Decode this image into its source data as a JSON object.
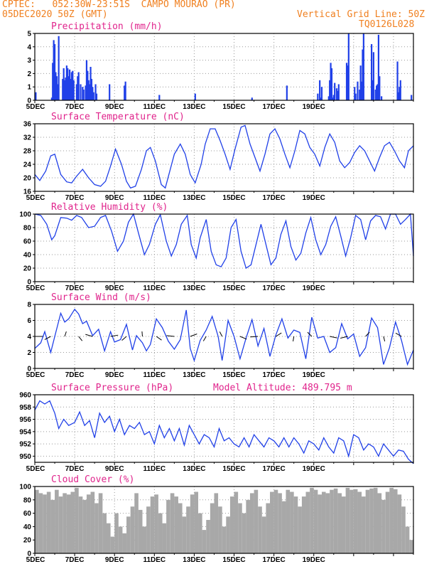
{
  "header": {
    "line1": "CPTEC:   052:30W-23:51S  CAMPO MOURAO (PR)",
    "line2": "05DEC2020 50Z (GMT)",
    "grid_note": "Vertical Grid Line: 50Z",
    "code": "TQ0126L028"
  },
  "colors": {
    "series": "#2040e8",
    "bars": "#2040e8",
    "cloud": "#a8a8a8",
    "title": "#e0248c",
    "header": "#f08020"
  },
  "x_labels": [
    "5DEC",
    "7DEC",
    "9DEC",
    "11DEC",
    "13DEC",
    "15DEC",
    "17DEC",
    "19DEC"
  ],
  "chart_data": [
    {
      "id": "precip",
      "type": "bar",
      "title": "Precipitation (mm/h)",
      "ylim": [
        0,
        5
      ],
      "yticks": [
        "0",
        "1",
        "2",
        "3",
        "4",
        "5"
      ],
      "x_unit": "days since 5DEC 00Z",
      "x": [
        0.05,
        0.85,
        0.9,
        0.95,
        1.0,
        1.05,
        1.1,
        1.15,
        1.2,
        1.4,
        1.45,
        1.5,
        1.55,
        1.6,
        1.65,
        1.7,
        1.75,
        1.8,
        1.85,
        1.9,
        1.95,
        2.1,
        2.15,
        2.2,
        2.3,
        2.4,
        2.45,
        2.55,
        2.6,
        2.65,
        2.7,
        2.75,
        2.8,
        2.85,
        2.9,
        2.95,
        3.05,
        3.1,
        3.75,
        4.5,
        4.55,
        6.25,
        8.05,
        10.9,
        12.65,
        14.2,
        14.3,
        14.35,
        14.4,
        14.75,
        14.8,
        14.85,
        14.9,
        14.95,
        15.0,
        15.05,
        15.15,
        15.2,
        15.25,
        15.65,
        15.7,
        15.75,
        16.05,
        16.1,
        16.2,
        16.3,
        16.35,
        16.4,
        16.45,
        16.5,
        16.9,
        16.95,
        17.0,
        17.1,
        17.15,
        17.2,
        17.25,
        17.3,
        17.4,
        18.2,
        18.25,
        18.3,
        18.35,
        18.9
      ],
      "values": [
        0.6,
        0.2,
        2.8,
        4.5,
        4.2,
        2.1,
        1.8,
        1.2,
        4.8,
        1.6,
        2.4,
        1.5,
        1.7,
        2.6,
        2.4,
        1.8,
        2.3,
        1.6,
        2.1,
        2.2,
        1.5,
        1.2,
        1.8,
        2.1,
        1.2,
        1.0,
        0.8,
        1.1,
        3.0,
        2.2,
        1.5,
        1.2,
        2.5,
        1.6,
        1.0,
        0.6,
        1.2,
        0.5,
        1.2,
        1.1,
        1.4,
        0.4,
        0.5,
        0.2,
        1.1,
        0.5,
        1.5,
        0.2,
        1.0,
        0.3,
        1.5,
        2.8,
        2.4,
        0.2,
        0.4,
        1.3,
        0.9,
        0.7,
        1.2,
        2.8,
        2.6,
        5.0,
        1.0,
        0.5,
        1.4,
        0.8,
        2.6,
        1.4,
        3.8,
        5.0,
        4.2,
        1.5,
        3.6,
        0.8,
        1.1,
        1.2,
        4.9,
        1.8,
        0.3,
        2.9,
        0.6,
        1.0,
        1.5,
        0.4
      ]
    },
    {
      "id": "temp",
      "type": "line",
      "title": "Surface Temperature (nC)",
      "ylim": [
        16,
        36
      ],
      "yticks": [
        "16",
        "20",
        "24",
        "28",
        "32",
        "36"
      ],
      "x_unit": "days since 5DEC 00Z",
      "x": [
        0,
        0.25,
        0.55,
        0.8,
        1.0,
        1.3,
        1.6,
        1.85,
        2.1,
        2.4,
        2.7,
        3.0,
        3.3,
        3.55,
        3.8,
        4.05,
        4.35,
        4.6,
        4.8,
        5.05,
        5.35,
        5.6,
        5.8,
        6.05,
        6.35,
        6.55,
        6.75,
        7.0,
        7.3,
        7.55,
        7.8,
        8.05,
        8.35,
        8.55,
        8.8,
        9.05,
        9.3,
        9.55,
        9.8,
        10.05,
        10.35,
        10.55,
        10.8,
        11.05,
        11.3,
        11.55,
        11.8,
        12.05,
        12.3,
        12.55,
        12.8,
        13.05,
        13.3,
        13.55,
        13.8,
        14.05,
        14.3,
        14.55,
        14.8,
        15.05,
        15.3,
        15.55,
        15.8,
        16.05,
        16.3,
        16.55,
        16.8,
        17.05,
        17.3,
        17.55,
        17.8,
        18.05,
        18.3,
        18.55,
        18.75,
        19.0
      ],
      "values": [
        21,
        19.2,
        22,
        26.5,
        27,
        21,
        18.8,
        18.5,
        20.5,
        22.5,
        20,
        18,
        17.5,
        19,
        23.5,
        28.5,
        24,
        19,
        17,
        17.5,
        22.5,
        28,
        29,
        25,
        18,
        17,
        21.5,
        27,
        30,
        27,
        21,
        18.5,
        24,
        30,
        34.5,
        34.5,
        31,
        27,
        22.5,
        28.5,
        35,
        35.5,
        30,
        26,
        22,
        27,
        33,
        34.5,
        31.5,
        27,
        23,
        28,
        34,
        33,
        29,
        27,
        23.5,
        29,
        33,
        30.5,
        25,
        23,
        24.5,
        27.5,
        29.5,
        28,
        25,
        22,
        26,
        29.5,
        30.5,
        28,
        25,
        23,
        28,
        29.5
      ]
    },
    {
      "id": "rh",
      "type": "line",
      "title": "Relative Humidity (%)",
      "ylim": [
        0,
        100
      ],
      "yticks": [
        "0",
        "20",
        "40",
        "60",
        "80",
        "100"
      ],
      "x_unit": "days since 5DEC 00Z",
      "x": [
        0,
        0.3,
        0.6,
        0.85,
        1.0,
        1.3,
        1.6,
        1.85,
        2.1,
        2.35,
        2.7,
        3.0,
        3.3,
        3.55,
        3.85,
        4.15,
        4.45,
        4.7,
        4.95,
        5.2,
        5.5,
        5.75,
        6.05,
        6.3,
        6.6,
        6.85,
        7.1,
        7.35,
        7.65,
        7.85,
        8.1,
        8.3,
        8.6,
        8.85,
        9.1,
        9.35,
        9.6,
        9.85,
        10.1,
        10.35,
        10.6,
        10.85,
        11.1,
        11.35,
        11.6,
        11.85,
        12.1,
        12.35,
        12.6,
        12.85,
        13.1,
        13.35,
        13.6,
        13.85,
        14.1,
        14.35,
        14.6,
        14.85,
        15.1,
        15.35,
        15.6,
        15.85,
        16.1,
        16.35,
        16.6,
        16.85,
        17.1,
        17.35,
        17.6,
        17.85,
        18.1,
        18.35,
        18.6,
        18.85,
        19.0
      ],
      "values": [
        100,
        98,
        85,
        62,
        68,
        95,
        94,
        91,
        98,
        95,
        80,
        82,
        95,
        98,
        75,
        45,
        60,
        88,
        100,
        72,
        40,
        55,
        85,
        99,
        60,
        38,
        55,
        85,
        98,
        55,
        35,
        65,
        92,
        45,
        25,
        22,
        35,
        80,
        92,
        45,
        20,
        25,
        55,
        85,
        55,
        25,
        35,
        70,
        90,
        52,
        32,
        42,
        72,
        95,
        62,
        40,
        55,
        82,
        96,
        68,
        38,
        65,
        98,
        92,
        62,
        90,
        98,
        96,
        78,
        100,
        100,
        85,
        92,
        100,
        38
      ]
    },
    {
      "id": "wind",
      "type": "line",
      "title": "Surface Wind (m/s)",
      "ylim": [
        0,
        8
      ],
      "yticks": [
        "0",
        "2",
        "4",
        "6",
        "8"
      ],
      "x_unit": "days since 5DEC 00Z",
      "x": [
        0,
        0.3,
        0.5,
        0.8,
        1.0,
        1.3,
        1.5,
        1.7,
        2.0,
        2.2,
        2.4,
        2.6,
        2.9,
        3.2,
        3.5,
        3.8,
        4.0,
        4.3,
        4.6,
        4.9,
        5.1,
        5.4,
        5.6,
        5.8,
        6.1,
        6.4,
        6.7,
        7.0,
        7.3,
        7.6,
        7.8,
        8.0,
        8.3,
        8.6,
        8.9,
        9.2,
        9.4,
        9.7,
        10.0,
        10.3,
        10.6,
        10.9,
        11.2,
        11.5,
        11.8,
        12.1,
        12.4,
        12.7,
        13.0,
        13.3,
        13.6,
        13.9,
        14.2,
        14.5,
        14.8,
        15.1,
        15.4,
        15.7,
        16.0,
        16.3,
        16.6,
        16.9,
        17.2,
        17.5,
        17.8,
        18.1,
        18.4,
        18.7,
        19.0
      ],
      "values": [
        2.5,
        3.2,
        4.6,
        2.0,
        4.0,
        6.9,
        5.8,
        6.2,
        7.4,
        6.8,
        5.6,
        5.9,
        4.1,
        4.9,
        2.2,
        4.6,
        3.3,
        3.6,
        5.5,
        2.3,
        4.1,
        3.2,
        2.2,
        3.0,
        6.2,
        5.1,
        3.4,
        2.4,
        3.6,
        7.3,
        2.5,
        1.0,
        3.5,
        4.8,
        6.5,
        4.0,
        1.0,
        6.0,
        4.0,
        1.2,
        3.8,
        6.1,
        2.8,
        5.0,
        1.5,
        4.2,
        6.2,
        3.8,
        4.8,
        4.5,
        1.2,
        6.4,
        3.8,
        4.0,
        2.0,
        2.6,
        5.6,
        3.7,
        4.3,
        1.5,
        2.6,
        6.3,
        5.1,
        0.5,
        2.6,
        5.8,
        3.5,
        0.5,
        2.3
      ]
    },
    {
      "id": "pres",
      "type": "line",
      "title": "Surface Pressure (hPa)",
      "note": "Model Altitude: 489.795 m",
      "ylim": [
        949,
        960
      ],
      "yticks": [
        "950",
        "952",
        "954",
        "956",
        "958",
        "960"
      ],
      "x_unit": "days since 5DEC 00Z",
      "x": [
        0,
        0.25,
        0.5,
        0.75,
        1.0,
        1.2,
        1.45,
        1.7,
        2.0,
        2.25,
        2.5,
        2.75,
        3.0,
        3.25,
        3.5,
        3.75,
        4.0,
        4.25,
        4.5,
        4.75,
        5.0,
        5.25,
        5.5,
        5.75,
        6.0,
        6.25,
        6.5,
        6.75,
        7.0,
        7.25,
        7.5,
        7.75,
        8.0,
        8.25,
        8.5,
        8.75,
        9.0,
        9.25,
        9.5,
        9.75,
        10.0,
        10.25,
        10.5,
        10.75,
        11.0,
        11.25,
        11.5,
        11.75,
        12.0,
        12.25,
        12.5,
        12.75,
        13.0,
        13.25,
        13.5,
        13.75,
        14.0,
        14.25,
        14.5,
        14.75,
        15.0,
        15.25,
        15.5,
        15.75,
        16.0,
        16.25,
        16.5,
        16.75,
        17.0,
        17.25,
        17.5,
        17.75,
        18.0,
        18.25,
        18.5,
        18.75,
        19.0
      ],
      "values": [
        957.5,
        959,
        958.5,
        959,
        957,
        954.5,
        956,
        955,
        955.5,
        957.2,
        955,
        955.8,
        953,
        957,
        955.5,
        956.5,
        954,
        956,
        953.5,
        955,
        954.5,
        955.5,
        953.5,
        954,
        952,
        955,
        953,
        954.5,
        952.5,
        954.5,
        951.8,
        955,
        953.5,
        952,
        953.5,
        953,
        951.5,
        954.5,
        952.5,
        953,
        952,
        951.5,
        953,
        951.5,
        953.5,
        952.5,
        951.5,
        953,
        952.5,
        951.5,
        953,
        951.5,
        953,
        952,
        950.5,
        952.5,
        952,
        951,
        953,
        951.5,
        950.5,
        953,
        952.5,
        950,
        953.5,
        953,
        951,
        952,
        951.5,
        950,
        952,
        951,
        950,
        951,
        950.8,
        949.5,
        948.8
      ]
    },
    {
      "id": "cloud",
      "type": "bar",
      "title": "Cloud Cover (%)",
      "ylim": [
        0,
        100
      ],
      "yticks": [
        "0",
        "20",
        "40",
        "60",
        "80",
        "100"
      ],
      "x_unit": "days since 5DEC 00Z",
      "x": [
        0,
        0.2,
        0.4,
        0.6,
        0.8,
        1.0,
        1.2,
        1.4,
        1.6,
        1.8,
        2.0,
        2.2,
        2.4,
        2.6,
        2.8,
        3.0,
        3.2,
        3.4,
        3.6,
        3.8,
        4.0,
        4.2,
        4.4,
        4.6,
        4.8,
        5.0,
        5.2,
        5.4,
        5.6,
        5.8,
        6.0,
        6.2,
        6.4,
        6.6,
        6.8,
        7.0,
        7.2,
        7.4,
        7.6,
        7.8,
        8.0,
        8.2,
        8.4,
        8.6,
        8.8,
        9.0,
        9.2,
        9.4,
        9.6,
        9.8,
        10.0,
        10.2,
        10.4,
        10.6,
        10.8,
        11.0,
        11.2,
        11.4,
        11.6,
        11.8,
        12.0,
        12.2,
        12.4,
        12.6,
        12.8,
        13.0,
        13.2,
        13.4,
        13.6,
        13.8,
        14.0,
        14.2,
        14.4,
        14.6,
        14.8,
        15.0,
        15.2,
        15.4,
        15.6,
        15.8,
        16.0,
        16.2,
        16.4,
        16.6,
        16.8,
        17.0,
        17.2,
        17.4,
        17.6,
        17.8,
        18.0,
        18.2,
        18.4,
        18.6,
        18.8
      ],
      "values": [
        95,
        90,
        88,
        92,
        80,
        95,
        85,
        90,
        88,
        92,
        98,
        85,
        80,
        88,
        92,
        75,
        90,
        60,
        45,
        25,
        60,
        40,
        30,
        55,
        70,
        90,
        65,
        40,
        70,
        85,
        88,
        60,
        45,
        80,
        90,
        85,
        75,
        55,
        70,
        88,
        92,
        60,
        35,
        50,
        75,
        90,
        70,
        40,
        55,
        85,
        92,
        75,
        60,
        80,
        90,
        95,
        70,
        55,
        75,
        92,
        95,
        90,
        78,
        95,
        92,
        85,
        70,
        85,
        92,
        98,
        95,
        88,
        92,
        90,
        95,
        97,
        90,
        85,
        98,
        95,
        96,
        92,
        85,
        95,
        97,
        98,
        90,
        80,
        92,
        98,
        96,
        88,
        70,
        40,
        20
      ]
    }
  ]
}
